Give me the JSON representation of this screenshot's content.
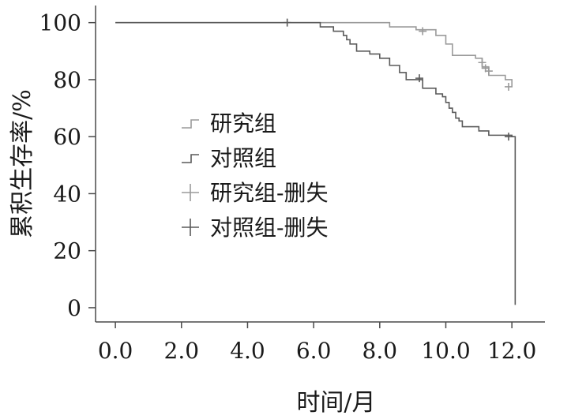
{
  "chart_data": {
    "type": "line",
    "title": "",
    "xlabel": "时间/月",
    "ylabel": "累积生存率/%",
    "xlim": [
      -0.6,
      13.0
    ],
    "ylim": [
      -5,
      106
    ],
    "xticks": [
      0,
      2,
      4,
      6,
      8,
      10,
      12
    ],
    "xtick_labels": [
      "0.0",
      "2.0",
      "4.0",
      "6.0",
      "8.0",
      "10.0",
      "12.0"
    ],
    "yticks": [
      0,
      20,
      40,
      60,
      80,
      100
    ],
    "ytick_labels": [
      "0",
      "20",
      "40",
      "60",
      "80",
      "100"
    ],
    "grid": false,
    "legend_position": "center-left",
    "step": true,
    "series": [
      {
        "name": "研究组",
        "color": "#9a9a9a",
        "x": [
          0,
          1.5,
          5.0,
          6.2,
          8.3,
          9.1,
          9.7,
          10.0,
          10.2,
          10.9,
          11.1,
          11.3,
          11.8,
          12.0
        ],
        "y": [
          100,
          100,
          100,
          100,
          98.5,
          97.5,
          95.5,
          92.5,
          88.5,
          87.5,
          84.5,
          81.5,
          80,
          77.5
        ]
      },
      {
        "name": "对照组",
        "color": "#5a5a5a",
        "x": [
          0,
          6.2,
          6.6,
          6.9,
          7.0,
          7.1,
          7.3,
          7.7,
          8.0,
          8.3,
          8.6,
          8.8,
          9.3,
          9.7,
          9.9,
          10.0,
          10.1,
          10.2,
          10.3,
          10.4,
          10.5,
          11.0,
          11.3,
          12.0,
          12.1,
          12.1
        ],
        "y": [
          100,
          98.5,
          97,
          95.5,
          94,
          92.5,
          90,
          89,
          87.5,
          85,
          82.5,
          80,
          77,
          75,
          74,
          72,
          70,
          68.5,
          66.5,
          65.5,
          63.5,
          62,
          60.5,
          60,
          60,
          1
        ]
      }
    ],
    "censored": [
      {
        "name": "研究组-删失",
        "color": "#9a9a9a",
        "x": [
          9.3,
          11.1,
          11.2,
          11.3,
          11.9
        ],
        "y": [
          97,
          86,
          84,
          83,
          77.5
        ]
      },
      {
        "name": "对照组-删失",
        "color": "#5a5a5a",
        "x": [
          5.2,
          9.2,
          11.9
        ],
        "y": [
          100,
          80.5,
          60
        ]
      }
    ]
  }
}
